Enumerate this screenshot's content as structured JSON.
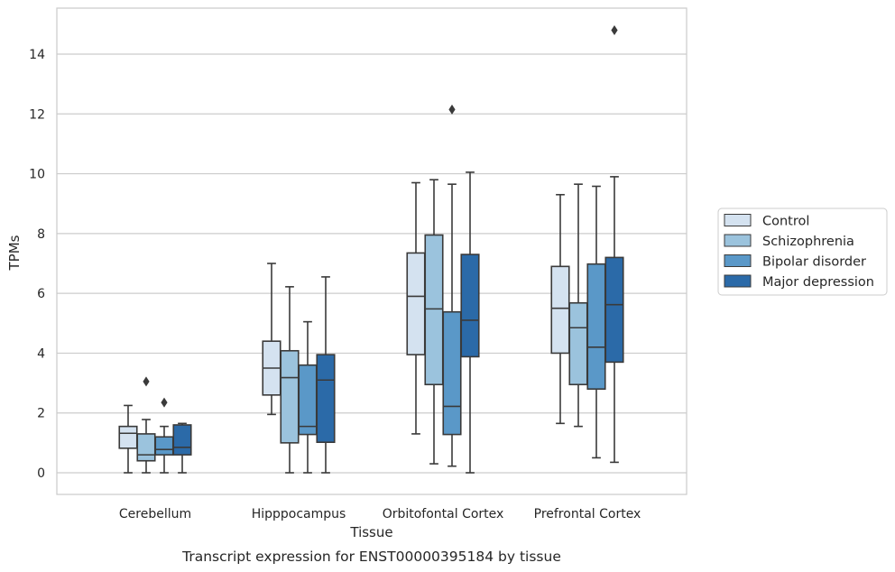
{
  "chart_data": {
    "type": "box",
    "caption": "Transcript expression for ENST00000395184 by tissue",
    "xlabel": "Tissue",
    "ylabel": "TPMs",
    "ylim": [
      -0.7,
      15.5
    ],
    "yticks": [
      0,
      2,
      4,
      6,
      8,
      10,
      12,
      14
    ],
    "grid": "horizontal",
    "legend_position": "right",
    "categories": [
      "Cerebellum",
      "Hipppocampus",
      "Orbitofontal Cortex",
      "Prefrontal Cortex"
    ],
    "series": [
      {
        "name": "Control",
        "color": "#d4e2f0",
        "boxes": [
          {
            "whislo": 0.0,
            "q1": 0.82,
            "med": 1.32,
            "q3": 1.55,
            "whishi": 2.25,
            "fliers": []
          },
          {
            "whislo": 1.95,
            "q1": 2.6,
            "med": 3.5,
            "q3": 4.4,
            "whishi": 7.0,
            "fliers": []
          },
          {
            "whislo": 1.3,
            "q1": 3.95,
            "med": 5.9,
            "q3": 7.35,
            "whishi": 9.7,
            "fliers": []
          },
          {
            "whislo": 1.65,
            "q1": 4.0,
            "med": 5.5,
            "q3": 6.9,
            "whishi": 9.3,
            "fliers": []
          }
        ]
      },
      {
        "name": "Schizophrenia",
        "color": "#9bc3dd",
        "boxes": [
          {
            "whislo": 0.0,
            "q1": 0.4,
            "med": 0.6,
            "q3": 1.3,
            "whishi": 1.78,
            "fliers": [
              3.05
            ]
          },
          {
            "whislo": 0.0,
            "q1": 1.0,
            "med": 3.18,
            "q3": 4.08,
            "whishi": 6.22,
            "fliers": []
          },
          {
            "whislo": 0.3,
            "q1": 2.95,
            "med": 5.48,
            "q3": 7.95,
            "whishi": 9.8,
            "fliers": []
          },
          {
            "whislo": 1.55,
            "q1": 2.95,
            "med": 4.85,
            "q3": 5.68,
            "whishi": 9.65,
            "fliers": []
          }
        ]
      },
      {
        "name": "Bipolar disorder",
        "color": "#5a98c8",
        "boxes": [
          {
            "whislo": 0.0,
            "q1": 0.6,
            "med": 0.78,
            "q3": 1.2,
            "whishi": 1.55,
            "fliers": [
              2.35
            ]
          },
          {
            "whislo": 0.0,
            "q1": 1.28,
            "med": 1.55,
            "q3": 3.6,
            "whishi": 5.05,
            "fliers": []
          },
          {
            "whislo": 0.22,
            "q1": 1.28,
            "med": 2.22,
            "q3": 5.38,
            "whishi": 9.65,
            "fliers": [
              12.15
            ]
          },
          {
            "whislo": 0.5,
            "q1": 2.8,
            "med": 4.2,
            "q3": 6.98,
            "whishi": 9.58,
            "fliers": []
          }
        ]
      },
      {
        "name": "Major depression",
        "color": "#2b6aa8",
        "boxes": [
          {
            "whislo": 0.0,
            "q1": 0.6,
            "med": 0.85,
            "q3": 1.6,
            "whishi": 1.65,
            "fliers": []
          },
          {
            "whislo": 0.0,
            "q1": 1.02,
            "med": 3.1,
            "q3": 3.95,
            "whishi": 6.55,
            "fliers": []
          },
          {
            "whislo": 0.0,
            "q1": 3.88,
            "med": 5.1,
            "q3": 7.3,
            "whishi": 10.05,
            "fliers": []
          },
          {
            "whislo": 0.35,
            "q1": 3.7,
            "med": 5.62,
            "q3": 7.2,
            "whishi": 9.9,
            "fliers": [
              14.8
            ]
          }
        ]
      }
    ]
  }
}
